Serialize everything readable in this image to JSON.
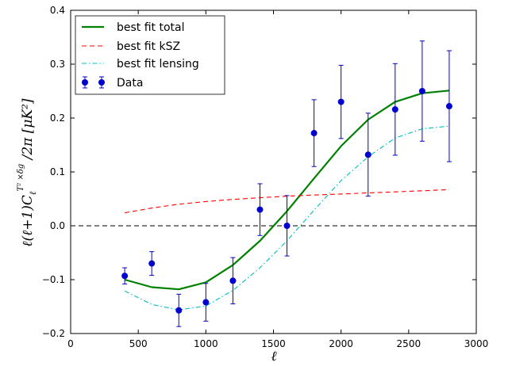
{
  "chart_data": {
    "type": "line",
    "xlabel": "ℓ",
    "ylabel": "ℓ(ℓ+1)C_ℓ^{T²×δg}/2π [μK²]",
    "xlim": [
      0,
      3000
    ],
    "ylim": [
      -0.2,
      0.4
    ],
    "xticks": [
      0,
      500,
      1000,
      1500,
      2000,
      2500,
      3000
    ],
    "yticks": [
      -0.2,
      -0.1,
      0.0,
      0.1,
      0.2,
      0.3,
      0.4
    ],
    "xtick_labels": [
      "0",
      "500",
      "1000",
      "1500",
      "2000",
      "2500",
      "3000"
    ],
    "ytick_labels": [
      "−0.2",
      "−0.1",
      "0.0",
      "0.1",
      "0.2",
      "0.3",
      "0.4"
    ],
    "grid": false,
    "zero_line": true,
    "legend_position": "top-left",
    "series": [
      {
        "name": "best fit total",
        "style": "solid",
        "color": "#008000",
        "x": [
          400,
          600,
          800,
          1000,
          1200,
          1400,
          1600,
          1800,
          2000,
          2200,
          2400,
          2600,
          2800
        ],
        "y": [
          -0.1,
          -0.114,
          -0.118,
          -0.105,
          -0.073,
          -0.028,
          0.027,
          0.088,
          0.148,
          0.197,
          0.23,
          0.246,
          0.251
        ]
      },
      {
        "name": "best fit kSZ",
        "style": "dashed",
        "color": "#ff0000",
        "x": [
          400,
          600,
          800,
          1000,
          1200,
          1400,
          1600,
          1800,
          2000,
          2200,
          2400,
          2600,
          2800
        ],
        "y": [
          0.024,
          0.033,
          0.04,
          0.045,
          0.049,
          0.052,
          0.055,
          0.057,
          0.059,
          0.061,
          0.063,
          0.065,
          0.067
        ]
      },
      {
        "name": "best fit lensing",
        "style": "dashdot",
        "color": "#00bfbf",
        "x": [
          400,
          600,
          800,
          1000,
          1200,
          1400,
          1600,
          1800,
          2000,
          2200,
          2400,
          2600,
          2800
        ],
        "y": [
          -0.121,
          -0.146,
          -0.156,
          -0.149,
          -0.12,
          -0.078,
          -0.028,
          0.029,
          0.084,
          0.128,
          0.163,
          0.18,
          0.185
        ]
      },
      {
        "name": "Data",
        "style": "errorbar",
        "color": "#0000cc",
        "x": [
          400,
          600,
          800,
          1000,
          1200,
          1400,
          1600,
          1800,
          2000,
          2200,
          2400,
          2600,
          2800
        ],
        "y": [
          -0.093,
          -0.07,
          -0.157,
          -0.142,
          -0.102,
          0.03,
          0.0,
          0.172,
          0.23,
          0.132,
          0.216,
          0.25,
          0.222
        ],
        "yerr": [
          0.015,
          0.022,
          0.03,
          0.035,
          0.043,
          0.048,
          0.056,
          0.062,
          0.068,
          0.077,
          0.085,
          0.093,
          0.103
        ]
      }
    ]
  }
}
